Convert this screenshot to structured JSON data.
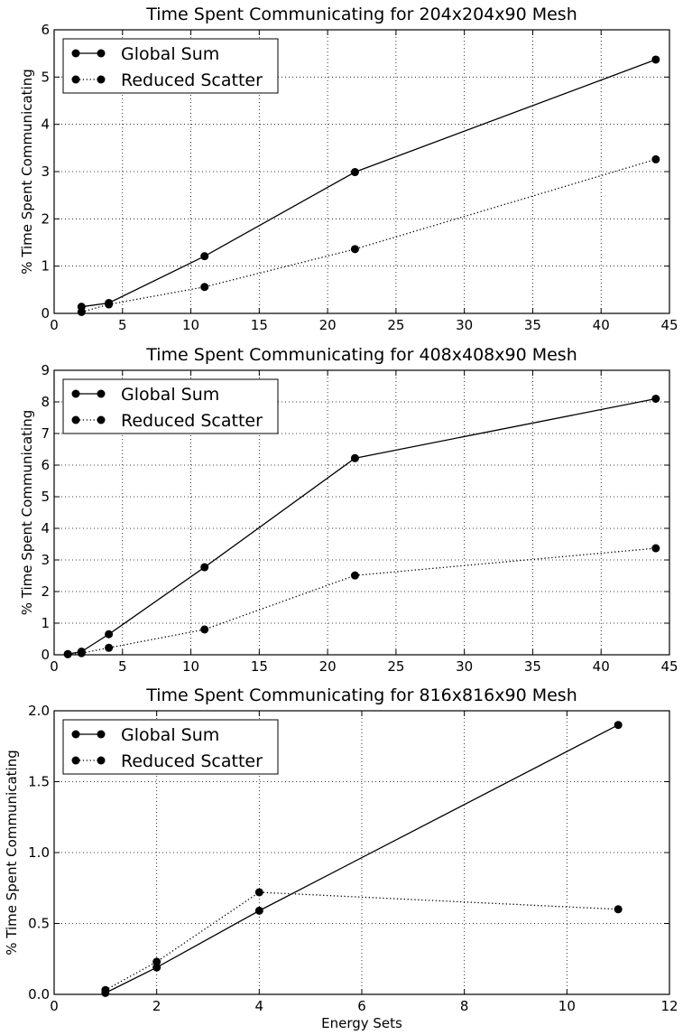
{
  "chart_data": [
    {
      "type": "line",
      "title": "Time Spent Communicating for 204x204x90 Mesh",
      "xlabel": "",
      "ylabel": "% Time Spent Communicating",
      "xlim": [
        0,
        45
      ],
      "ylim": [
        0,
        6
      ],
      "xticks": [
        0,
        5,
        10,
        15,
        20,
        25,
        30,
        35,
        40,
        45
      ],
      "yticks": [
        0,
        1,
        2,
        3,
        4,
        5,
        6
      ],
      "grid": true,
      "legend_position": "top-left",
      "series": [
        {
          "name": "Global Sum",
          "style": "solid",
          "x": [
            2,
            4,
            11,
            22,
            44
          ],
          "y": [
            0.14,
            0.22,
            1.21,
            2.99,
            5.37
          ]
        },
        {
          "name": "Reduced Scatter",
          "style": "dotted",
          "x": [
            2,
            4,
            11,
            22,
            44
          ],
          "y": [
            0.03,
            0.19,
            0.56,
            1.36,
            3.26
          ]
        }
      ]
    },
    {
      "type": "line",
      "title": "Time Spent Communicating for 408x408x90 Mesh",
      "xlabel": "",
      "ylabel": "% Time Spent Communicating",
      "xlim": [
        0,
        45
      ],
      "ylim": [
        0,
        9
      ],
      "xticks": [
        0,
        5,
        10,
        15,
        20,
        25,
        30,
        35,
        40,
        45
      ],
      "yticks": [
        0,
        1,
        2,
        3,
        4,
        5,
        6,
        7,
        8,
        9
      ],
      "grid": true,
      "legend_position": "top-left",
      "series": [
        {
          "name": "Global Sum",
          "style": "solid",
          "x": [
            1,
            2,
            4,
            11,
            22,
            44
          ],
          "y": [
            0.02,
            0.1,
            0.65,
            2.77,
            6.22,
            8.1
          ]
        },
        {
          "name": "Reduced Scatter",
          "style": "dotted",
          "x": [
            1,
            2,
            4,
            11,
            22,
            44
          ],
          "y": [
            0.02,
            0.05,
            0.22,
            0.8,
            2.51,
            3.37
          ]
        }
      ]
    },
    {
      "type": "line",
      "title": "Time Spent Communicating for 816x816x90 Mesh",
      "xlabel": "Energy Sets",
      "ylabel": "% Time Spent Communicating",
      "xlim": [
        0,
        12
      ],
      "ylim": [
        0,
        2
      ],
      "xticks": [
        0,
        2,
        4,
        6,
        8,
        10,
        12
      ],
      "yticks": [
        0.0,
        0.5,
        1.0,
        1.5,
        2.0
      ],
      "xtick_labels": [
        "0",
        "2",
        "4",
        "6",
        "8",
        "10",
        "12"
      ],
      "ytick_labels": [
        "0.0",
        "0.5",
        "1.0",
        "1.5",
        "2.0"
      ],
      "grid": true,
      "legend_position": "top-left",
      "series": [
        {
          "name": "Global Sum",
          "style": "solid",
          "x": [
            1,
            2,
            4,
            11
          ],
          "y": [
            0.01,
            0.19,
            0.59,
            1.9
          ]
        },
        {
          "name": "Reduced Scatter",
          "style": "dotted",
          "x": [
            1,
            2,
            4,
            11
          ],
          "y": [
            0.03,
            0.23,
            0.72,
            0.6
          ]
        }
      ]
    }
  ]
}
